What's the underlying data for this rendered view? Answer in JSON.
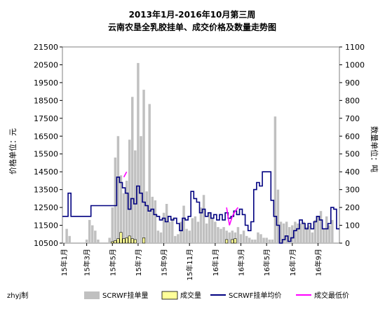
{
  "chart_data": {
    "type": "line",
    "title_line1": "2013年1月-2016年10月第三周",
    "title_line2": "云南农垦全乳胶挂单、成交价格及数量走势图",
    "ylabel_left": "价格单位：元",
    "ylabel_right": "数量单位：吨",
    "left_axis": {
      "min": 10500,
      "max": 21500,
      "ticks": [
        10500,
        11500,
        12500,
        13500,
        14500,
        15500,
        16500,
        17500,
        18500,
        19500,
        20500,
        21500
      ]
    },
    "right_axis": {
      "min": 0,
      "max": 1100,
      "ticks": [
        0,
        100,
        200,
        300,
        400,
        500,
        600,
        700,
        800,
        900,
        1000,
        1100
      ]
    },
    "x_ticks": [
      {
        "i": 0,
        "label": "15年1月"
      },
      {
        "i": 8,
        "label": "15年3月"
      },
      {
        "i": 17,
        "label": "15年5月"
      },
      {
        "i": 26,
        "label": "15年7月"
      },
      {
        "i": 35,
        "label": "15年9月"
      },
      {
        "i": 44,
        "label": "15年11月"
      },
      {
        "i": 53,
        "label": "16年1月"
      },
      {
        "i": 62,
        "label": "16年3月"
      },
      {
        "i": 71,
        "label": "16年5月"
      },
      {
        "i": 80,
        "label": "16年7月"
      },
      {
        "i": 89,
        "label": "16年9月"
      }
    ],
    "x_count": 97,
    "credit": "zhyj制",
    "legend": {
      "order_volume": "SCRWF挂单量",
      "deal_volume": "成交量",
      "order_avg_price": "SCRWF挂单均价",
      "deal_low_price": "成交最低价"
    },
    "colors": {
      "order_volume": "#c0c0c0",
      "deal_volume": "#ffff99",
      "order_avg_price": "#000080",
      "deal_low_price": "#ff00ff"
    },
    "order_volume": [
      0,
      80,
      40,
      0,
      0,
      0,
      0,
      0,
      20,
      130,
      100,
      70,
      20,
      0,
      0,
      0,
      30,
      200,
      480,
      600,
      380,
      280,
      350,
      580,
      820,
      520,
      1010,
      600,
      860,
      290,
      780,
      260,
      240,
      70,
      60,
      170,
      220,
      120,
      140,
      40,
      50,
      120,
      210,
      80,
      70,
      140,
      150,
      120,
      200,
      270,
      110,
      170,
      140,
      120,
      90,
      80,
      90,
      70,
      60,
      70,
      60,
      90,
      50,
      70,
      40,
      30,
      20,
      20,
      60,
      50,
      30,
      30,
      20,
      20,
      710,
      300,
      120,
      110,
      120,
      90,
      100,
      120,
      110,
      110,
      120,
      90,
      100,
      60,
      130,
      150,
      180,
      80,
      150,
      100,
      130,
      0,
      0
    ],
    "deal_volume": [
      0,
      0,
      0,
      0,
      0,
      0,
      0,
      0,
      0,
      0,
      0,
      0,
      0,
      0,
      0,
      0,
      0,
      8,
      14,
      25,
      60,
      25,
      30,
      40,
      25,
      20,
      0,
      0,
      30,
      0,
      0,
      0,
      0,
      0,
      0,
      0,
      0,
      0,
      0,
      0,
      0,
      0,
      0,
      0,
      0,
      0,
      0,
      0,
      0,
      0,
      0,
      0,
      0,
      0,
      0,
      0,
      0,
      20,
      0,
      20,
      25,
      0,
      0,
      0,
      0,
      0,
      0,
      0,
      0,
      0,
      0,
      0,
      0,
      0,
      0,
      0,
      0,
      0,
      0,
      0,
      0,
      0,
      0,
      0,
      0,
      0,
      0,
      0,
      0,
      0,
      0,
      0,
      0,
      0,
      0,
      0,
      0
    ],
    "order_avg_price": [
      12000,
      12000,
      13300,
      12000,
      12000,
      12000,
      12000,
      12000,
      12000,
      12000,
      12600,
      12600,
      12600,
      12600,
      12600,
      12600,
      12600,
      12600,
      12600,
      14200,
      13900,
      13600,
      13300,
      12400,
      13000,
      12700,
      13700,
      13300,
      12800,
      12600,
      12300,
      12400,
      12100,
      12000,
      11800,
      11900,
      11700,
      12000,
      11800,
      11900,
      11600,
      11200,
      11900,
      11800,
      12000,
      13400,
      13000,
      12800,
      12200,
      12400,
      12000,
      12200,
      11900,
      12100,
      11800,
      12100,
      11800,
      12200,
      11900,
      12000,
      12300,
      12100,
      12400,
      12100,
      11500,
      11200,
      11700,
      13500,
      13900,
      13700,
      14500,
      14500,
      14500,
      12900,
      12000,
      11500,
      10500,
      10700,
      10900,
      10600,
      10800,
      11200,
      11300,
      11800,
      11600,
      11300,
      11600,
      11300,
      11700,
      12000,
      11800,
      11300,
      11300,
      11600,
      12500,
      12400,
      11300
    ],
    "deal_low_price": [
      null,
      null,
      null,
      null,
      null,
      null,
      null,
      null,
      null,
      null,
      null,
      null,
      null,
      null,
      null,
      null,
      null,
      null,
      null,
      null,
      null,
      null,
      null,
      null,
      null,
      null,
      null,
      null,
      null,
      null,
      null,
      null,
      null,
      null,
      null,
      null,
      null,
      null,
      null,
      null,
      null,
      null,
      null,
      null,
      null,
      null,
      null,
      null,
      null,
      null,
      null,
      null,
      null,
      null,
      null,
      null,
      null,
      12500,
      11500,
      12000,
      12300,
      12500,
      null,
      null,
      null,
      null,
      null,
      null,
      null,
      null,
      null,
      null,
      null,
      null,
      null,
      null,
      null,
      null,
      null,
      null,
      null,
      null,
      null,
      null,
      null,
      null,
      null,
      null,
      null,
      null,
      null,
      null,
      null,
      null,
      null,
      null,
      null
    ],
    "deal_low_price_extra": [
      {
        "i": 21,
        "v": 14200
      },
      {
        "i": 22,
        "v": 14500
      }
    ]
  }
}
